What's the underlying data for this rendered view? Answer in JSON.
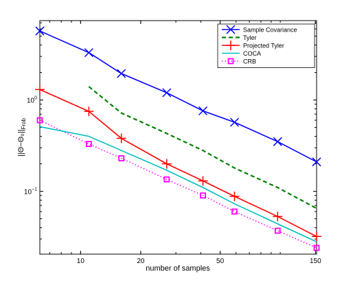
{
  "chart_data": {
    "type": "line",
    "xlabel": "number of samples",
    "ylabel": "||Θ−Θ₀||",
    "ylabel_subscript": "Frob",
    "xscale": "log",
    "yscale": "log",
    "xlim": [
      6.25,
      152
    ],
    "ylim": [
      0.0205,
      7.4
    ],
    "x_ticks": [
      {
        "value": 10,
        "label": "10"
      },
      {
        "value": 20,
        "label": "20"
      },
      {
        "value": 50,
        "label": "50"
      },
      {
        "value": 150,
        "label": "150"
      }
    ],
    "y_ticks": [
      {
        "value": 0.1,
        "base": "10",
        "exp": "−1"
      },
      {
        "value": 1,
        "base": "10",
        "exp": "0"
      }
    ],
    "grid": false,
    "legend_position": "top-right",
    "series": [
      {
        "name": "Sample Covariance",
        "color": "#0000ff",
        "line_style": "solid",
        "marker": "x",
        "x": [
          6.25,
          11,
          16,
          27,
          41,
          59,
          97,
          152
        ],
        "y": [
          5.7,
          3.3,
          1.95,
          1.2,
          0.76,
          0.57,
          0.35,
          0.21
        ]
      },
      {
        "name": "Tyler",
        "color": "#008000",
        "line_style": "dashed",
        "marker": "none",
        "x": [
          11,
          16,
          27,
          41,
          59,
          97,
          152
        ],
        "y": [
          1.4,
          0.72,
          0.43,
          0.28,
          0.18,
          0.11,
          0.065
        ]
      },
      {
        "name": "Projected Tyler",
        "color": "#ff0000",
        "line_style": "solid",
        "marker": "plus",
        "x": [
          6.25,
          11,
          16,
          27,
          41,
          59,
          97,
          152
        ],
        "y": [
          1.3,
          0.75,
          0.38,
          0.2,
          0.13,
          0.088,
          0.053,
          0.032
        ]
      },
      {
        "name": "COCA",
        "color": "#00bfbf",
        "line_style": "solid",
        "marker": "none",
        "x": [
          6.25,
          11,
          16,
          27,
          41,
          59,
          97,
          152
        ],
        "y": [
          0.51,
          0.4,
          0.28,
          0.17,
          0.11,
          0.073,
          0.044,
          0.028
        ]
      },
      {
        "name": "CRB",
        "color": "#ff00ff",
        "line_style": "dotted",
        "marker": "square",
        "x": [
          6.25,
          11,
          16,
          27,
          41,
          59,
          97,
          152
        ],
        "y": [
          0.6,
          0.33,
          0.23,
          0.135,
          0.09,
          0.06,
          0.037,
          0.024
        ]
      }
    ]
  }
}
